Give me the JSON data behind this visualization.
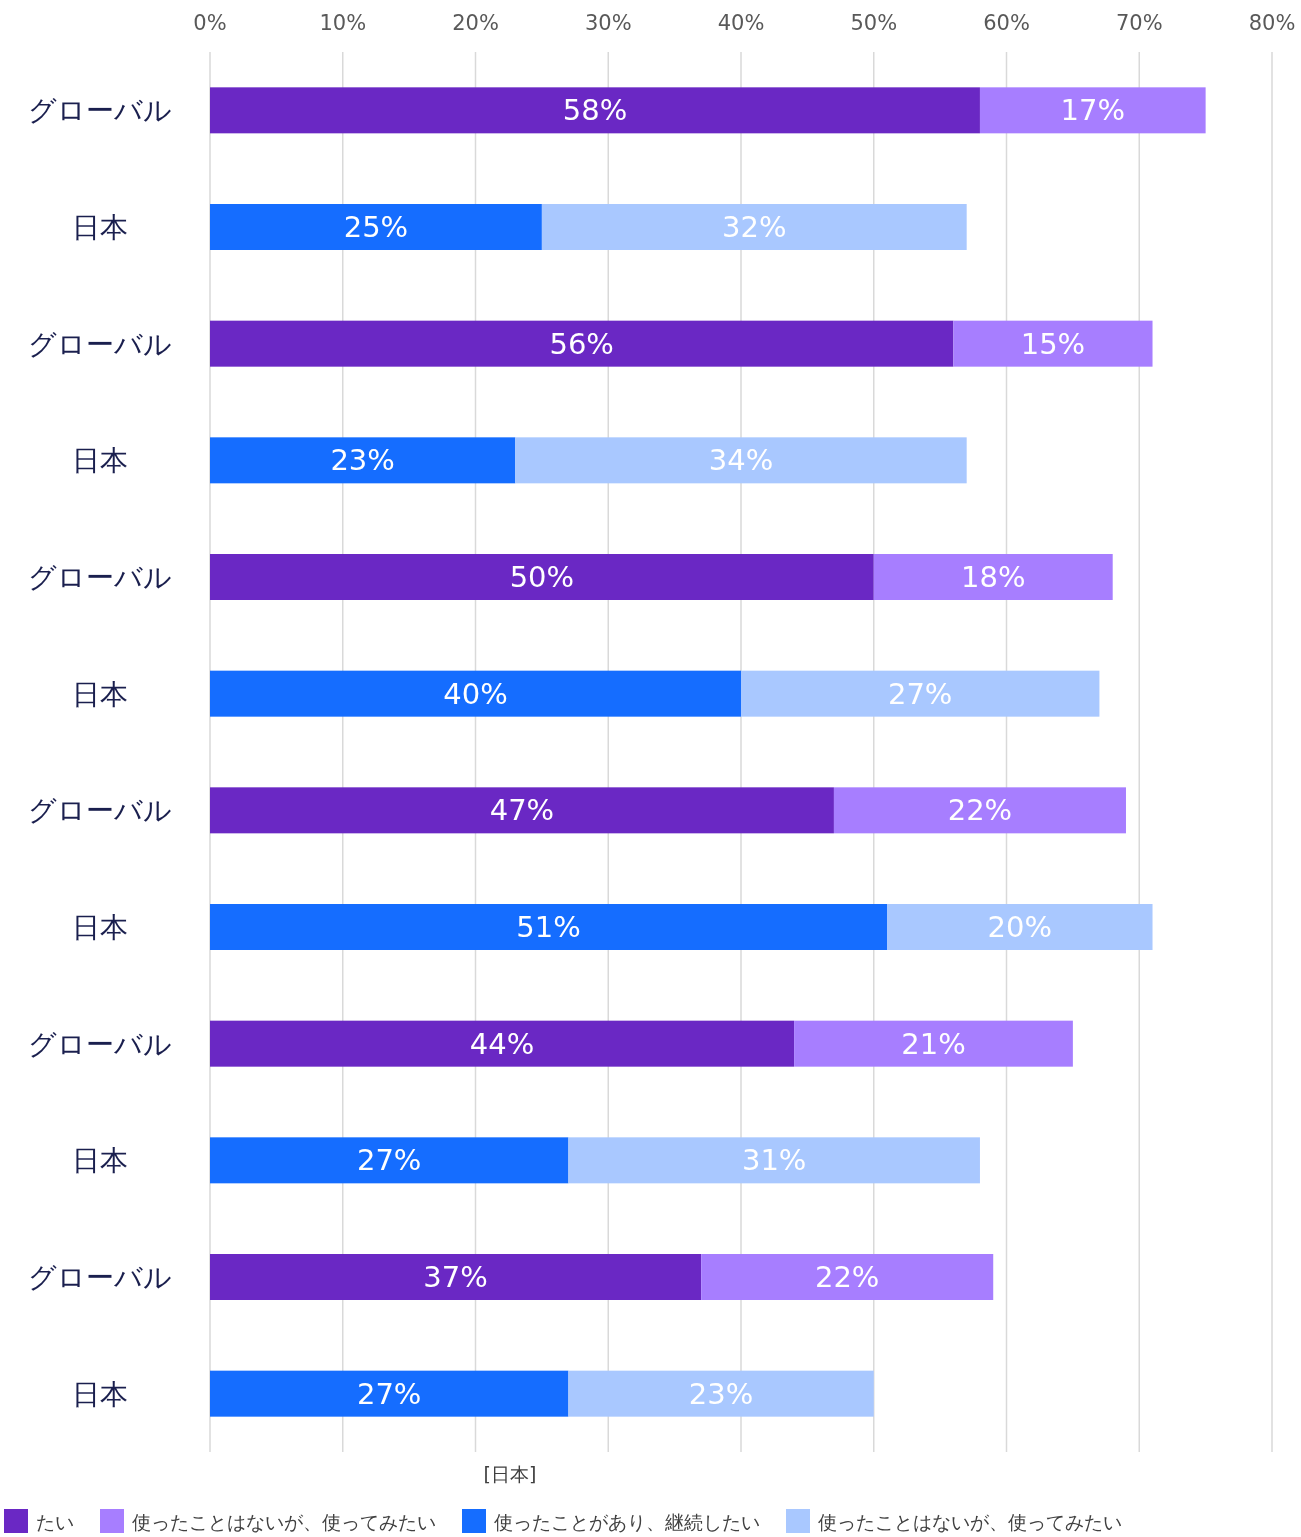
{
  "chart_data": {
    "type": "bar",
    "orientation": "horizontal",
    "stacked": true,
    "categories": [
      "グローバル",
      "日本",
      "グローバル",
      "日本",
      "グローバル",
      "日本",
      "グローバル",
      "日本",
      "グローバル",
      "日本",
      "グローバル",
      "日本"
    ],
    "series": [
      {
        "name": "たい",
        "color": "#6a28c4",
        "values": [
          58,
          null,
          56,
          null,
          50,
          null,
          47,
          null,
          44,
          null,
          37,
          null
        ],
        "value_labels": [
          "58%",
          null,
          "56%",
          null,
          "50%",
          null,
          "47%",
          null,
          "44%",
          null,
          "37%",
          null
        ]
      },
      {
        "name": "使ったことはないが、使ってみたい",
        "color": "#a77eff",
        "values": [
          17,
          null,
          15,
          null,
          18,
          null,
          22,
          null,
          21,
          null,
          22,
          null
        ],
        "value_labels": [
          "17%",
          null,
          "15%",
          null,
          "18%",
          null,
          "22%",
          null,
          "21%",
          null,
          "22%",
          null
        ]
      },
      {
        "name": "使ったことがあり、継続したい",
        "color": "#156dff",
        "values": [
          null,
          25,
          null,
          23,
          null,
          40,
          null,
          51,
          null,
          27,
          null,
          27
        ],
        "value_labels": [
          null,
          "25%",
          null,
          "23%",
          null,
          "40%",
          null,
          "51%",
          null,
          "27%",
          null,
          "27%"
        ]
      },
      {
        "name": "使ったことはないが、使ってみたい",
        "color": "#a9c8ff",
        "values": [
          null,
          32,
          null,
          34,
          null,
          27,
          null,
          20,
          null,
          31,
          null,
          23
        ],
        "value_labels": [
          null,
          "32%",
          null,
          "34%",
          null,
          "27%",
          null,
          "20%",
          null,
          "31%",
          null,
          "23%"
        ]
      }
    ],
    "xlim": [
      0,
      80
    ],
    "xticks": [
      {
        "value": 0,
        "label": "0%"
      },
      {
        "value": 10,
        "label": "10%"
      },
      {
        "value": 20,
        "label": "20%"
      },
      {
        "value": 30,
        "label": "30%"
      },
      {
        "value": 40,
        "label": "40%"
      },
      {
        "value": 50,
        "label": "50%"
      },
      {
        "value": 60,
        "label": "60%"
      },
      {
        "value": 70,
        "label": "70%"
      },
      {
        "value": 80,
        "label": "80%"
      }
    ],
    "grid": "x",
    "legend": "bottom",
    "annotations": [
      "[日本]"
    ]
  }
}
